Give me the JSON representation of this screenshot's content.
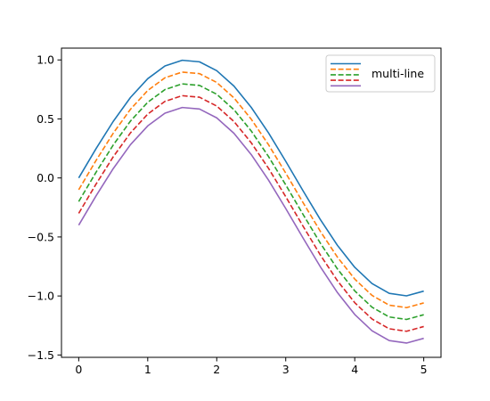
{
  "chart_data": {
    "type": "line",
    "title": "",
    "xlabel": "",
    "ylabel": "",
    "xlim": [
      -0.25,
      5.25
    ],
    "ylim": [
      -1.52,
      1.1
    ],
    "grid": false,
    "legend": {
      "placement": "top-right",
      "label": "multi-line"
    },
    "x_ticks": [
      {
        "value": 0,
        "label": "0"
      },
      {
        "value": 1,
        "label": "1"
      },
      {
        "value": 2,
        "label": "2"
      },
      {
        "value": 3,
        "label": "3"
      },
      {
        "value": 4,
        "label": "4"
      },
      {
        "value": 5,
        "label": "5"
      }
    ],
    "y_ticks": [
      {
        "value": 1.0,
        "label": "1.0"
      },
      {
        "value": 0.5,
        "label": "0.5"
      },
      {
        "value": 0.0,
        "label": "0.0"
      },
      {
        "value": -0.5,
        "label": "−0.5"
      },
      {
        "value": -1.0,
        "label": "−1.0"
      },
      {
        "value": -1.5,
        "label": "−1.5"
      }
    ],
    "x": [
      0,
      0.25,
      0.5,
      0.75,
      1,
      1.25,
      1.5,
      1.75,
      2,
      2.25,
      2.5,
      2.75,
      3,
      3.25,
      3.5,
      3.75,
      4,
      4.25,
      4.5,
      4.75,
      5
    ],
    "series": [
      {
        "color": "#1f77b4",
        "style": "solid",
        "values": [
          0,
          0.247,
          0.479,
          0.682,
          0.841,
          0.949,
          0.997,
          0.984,
          0.909,
          0.778,
          0.598,
          0.382,
          0.141,
          -0.108,
          -0.351,
          -0.572,
          -0.757,
          -0.895,
          -0.978,
          -0.999,
          -0.959
        ]
      },
      {
        "color": "#ff7f0e",
        "style": "dashed",
        "values": [
          -0.1,
          0.147,
          0.379,
          0.582,
          0.741,
          0.849,
          0.897,
          0.884,
          0.809,
          0.678,
          0.498,
          0.282,
          0.041,
          -0.208,
          -0.451,
          -0.672,
          -0.857,
          -0.995,
          -1.078,
          -1.099,
          -1.059
        ]
      },
      {
        "color": "#2ca02c",
        "style": "dashed",
        "values": [
          -0.2,
          0.047,
          0.279,
          0.482,
          0.641,
          0.749,
          0.797,
          0.784,
          0.709,
          0.578,
          0.398,
          0.182,
          -0.059,
          -0.308,
          -0.551,
          -0.772,
          -0.957,
          -1.095,
          -1.178,
          -1.199,
          -1.159
        ]
      },
      {
        "color": "#d62728",
        "style": "dashed",
        "values": [
          -0.3,
          -0.053,
          0.179,
          0.382,
          0.541,
          0.649,
          0.697,
          0.684,
          0.609,
          0.478,
          0.298,
          0.082,
          -0.159,
          -0.408,
          -0.651,
          -0.872,
          -1.057,
          -1.195,
          -1.278,
          -1.299,
          -1.259
        ]
      },
      {
        "color": "#9467bd",
        "style": "solid",
        "values": [
          -0.4,
          -0.153,
          0.079,
          0.282,
          0.441,
          0.549,
          0.597,
          0.584,
          0.509,
          0.378,
          0.198,
          -0.018,
          -0.259,
          -0.508,
          -0.751,
          -0.972,
          -1.157,
          -1.295,
          -1.378,
          -1.399,
          -1.359
        ]
      }
    ]
  }
}
